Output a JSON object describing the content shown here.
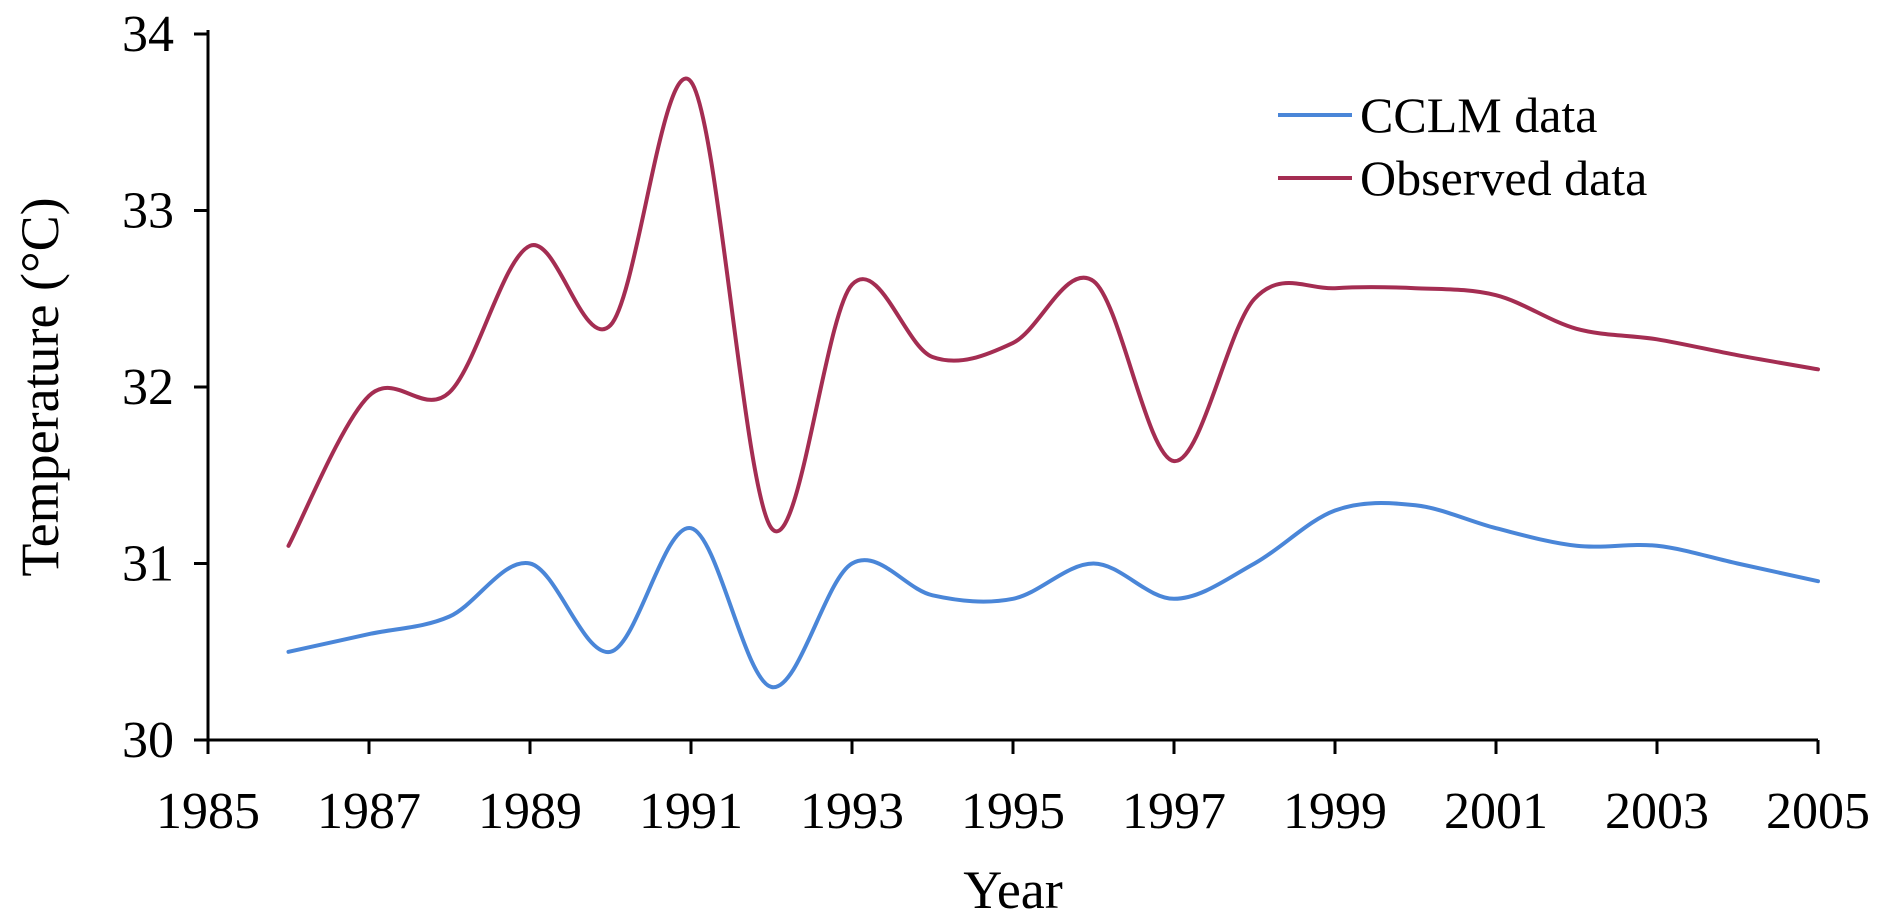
{
  "chart_data": {
    "type": "line",
    "title": "",
    "xlabel": "Year",
    "ylabel": "Temperature (°C)",
    "xlim": [
      1985,
      2005
    ],
    "ylim": [
      30,
      34
    ],
    "x_ticks": [
      "1985",
      "1987",
      "1989",
      "1991",
      "1993",
      "1995",
      "1997",
      "1999",
      "2001",
      "2003",
      "2005"
    ],
    "y_ticks": [
      "30",
      "31",
      "32",
      "33",
      "34"
    ],
    "x": [
      1986,
      1987,
      1988,
      1989,
      1990,
      1991,
      1992,
      1993,
      1994,
      1995,
      1996,
      1997,
      1998,
      1999,
      2000,
      2001,
      2002,
      2003,
      2004,
      2005
    ],
    "series": [
      {
        "name": "CCLM data",
        "color": "#4a86d8",
        "values": [
          30.5,
          30.6,
          30.7,
          31.0,
          30.5,
          31.2,
          30.3,
          31.0,
          30.82,
          30.8,
          31.0,
          30.8,
          31.0,
          31.3,
          31.33,
          31.2,
          31.1,
          31.1,
          31.0,
          30.9
        ]
      },
      {
        "name": "Observed data",
        "color": "#a42d52",
        "values": [
          31.1,
          31.95,
          31.97,
          32.8,
          32.35,
          33.73,
          31.2,
          32.58,
          32.17,
          32.25,
          32.6,
          31.58,
          32.5,
          32.56,
          32.56,
          32.52,
          32.33,
          32.27,
          32.18,
          32.1
        ]
      }
    ],
    "grid": false,
    "legend_position": "top-right"
  }
}
